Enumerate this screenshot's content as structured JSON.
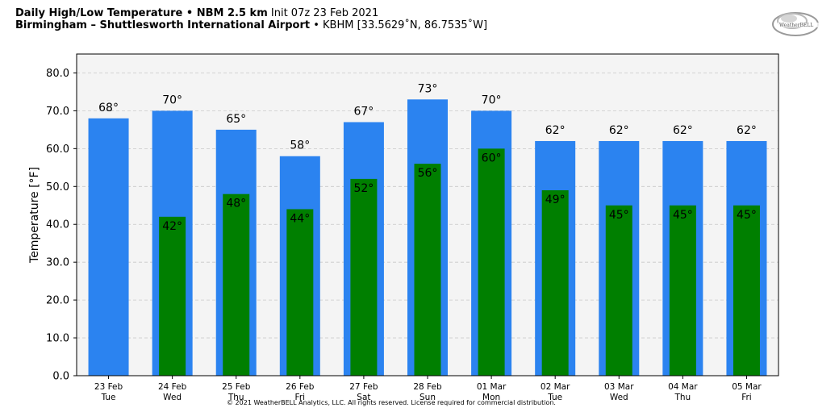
{
  "header": {
    "title_bold": "Daily High/Low Temperature • NBM 2.5 km",
    "title_rest": "Init 07z 23 Feb 2021",
    "subtitle_bold": "Birmingham – Shuttlesworth International Airport",
    "subtitle_rest": "• KBHM [33.5629˚N, 86.7535˚W]"
  },
  "logo": {
    "text": "WeatherBELL",
    "icon": "weatherbell-logo-icon"
  },
  "footer": {
    "copyright": "© 2021 WeatherBELL Analytics, LLC. All rights reserved. License required for commercial distribution."
  },
  "colors": {
    "high": "#2b83f0",
    "low": "#007f00",
    "plot_bg": "#f4f4f4"
  },
  "chart_data": {
    "type": "bar",
    "ylabel": "Temperature [°F]",
    "ylim": [
      0,
      85
    ],
    "yticks": [
      0,
      10,
      20,
      30,
      40,
      50,
      60,
      70,
      80
    ],
    "ytick_labels": [
      "0.0",
      "10.0",
      "20.0",
      "30.0",
      "40.0",
      "50.0",
      "60.0",
      "70.0",
      "80.0"
    ],
    "grid": true,
    "categories": [
      {
        "date": "23 Feb",
        "day": "Tue"
      },
      {
        "date": "24 Feb",
        "day": "Wed"
      },
      {
        "date": "25 Feb",
        "day": "Thu"
      },
      {
        "date": "26 Feb",
        "day": "Fri"
      },
      {
        "date": "27 Feb",
        "day": "Sat"
      },
      {
        "date": "28 Feb",
        "day": "Sun"
      },
      {
        "date": "01 Mar",
        "day": "Mon"
      },
      {
        "date": "02 Mar",
        "day": "Tue"
      },
      {
        "date": "03 Mar",
        "day": "Wed"
      },
      {
        "date": "04 Mar",
        "day": "Thu"
      },
      {
        "date": "05 Mar",
        "day": "Fri"
      }
    ],
    "series": [
      {
        "key": "high",
        "values": [
          68,
          70,
          65,
          58,
          67,
          73,
          70,
          62,
          62,
          62,
          62
        ],
        "labels": [
          "68°",
          "70°",
          "65°",
          "58°",
          "67°",
          "73°",
          "70°",
          "62°",
          "62°",
          "62°",
          "62°"
        ]
      },
      {
        "key": "low",
        "values": [
          null,
          42,
          48,
          44,
          52,
          56,
          60,
          49,
          45,
          45,
          45
        ],
        "labels": [
          "",
          "42°",
          "48°",
          "44°",
          "52°",
          "56°",
          "60°",
          "49°",
          "45°",
          "45°",
          "45°"
        ]
      }
    ]
  }
}
